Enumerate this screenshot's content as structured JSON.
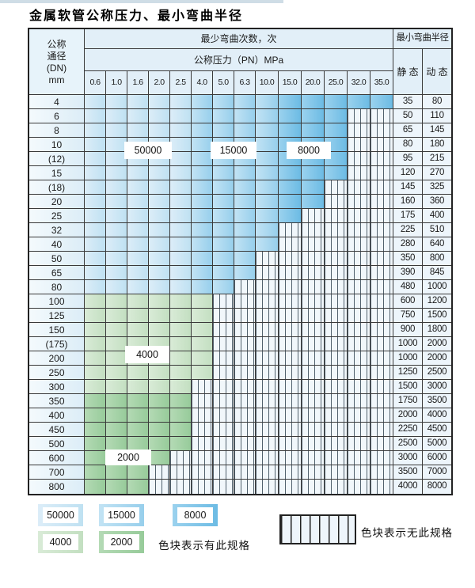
{
  "title": "金属软管公称压力、最小弯曲半径",
  "table": {
    "header": {
      "dn_lines": [
        "公称",
        "通径",
        "(DN)",
        "mm"
      ],
      "bend_times": "最少弯曲次数，次",
      "pressure": "公称压力（PN）MPa",
      "min_radius": "最小弯曲半径",
      "static_label": "静 态",
      "dynamic_label": "动 态",
      "pressures": [
        "0.6",
        "1.0",
        "1.6",
        "2.0",
        "2.5",
        "4.0",
        "5.0",
        "6.3",
        "10.0",
        "15.0",
        "20.0",
        "25.0",
        "32.0",
        "35.0"
      ]
    },
    "blue_zones": [
      {
        "value": "50000",
        "cols": [
          1,
          5
        ]
      },
      {
        "value": "15000",
        "cols": [
          6,
          9
        ]
      },
      {
        "value": "8000",
        "cols": [
          10,
          14
        ]
      }
    ],
    "rows": [
      {
        "dn": "4",
        "static": "35",
        "dynamic": "80",
        "max_col": 14,
        "zone": "blue"
      },
      {
        "dn": "6",
        "static": "50",
        "dynamic": "110",
        "max_col": 12,
        "zone": "blue"
      },
      {
        "dn": "8",
        "static": "65",
        "dynamic": "145",
        "max_col": 12,
        "zone": "blue"
      },
      {
        "dn": "10",
        "static": "80",
        "dynamic": "180",
        "max_col": 12,
        "zone": "blue"
      },
      {
        "dn": "(12)",
        "static": "95",
        "dynamic": "215",
        "max_col": 12,
        "zone": "blue"
      },
      {
        "dn": "15",
        "static": "120",
        "dynamic": "270",
        "max_col": 12,
        "zone": "blue"
      },
      {
        "dn": "(18)",
        "static": "145",
        "dynamic": "325",
        "max_col": 11,
        "zone": "blue"
      },
      {
        "dn": "20",
        "static": "160",
        "dynamic": "360",
        "max_col": 11,
        "zone": "blue"
      },
      {
        "dn": "25",
        "static": "175",
        "dynamic": "400",
        "max_col": 10,
        "zone": "blue"
      },
      {
        "dn": "32",
        "static": "225",
        "dynamic": "510",
        "max_col": 9,
        "zone": "blue"
      },
      {
        "dn": "40",
        "static": "280",
        "dynamic": "640",
        "max_col": 9,
        "zone": "blue"
      },
      {
        "dn": "50",
        "static": "350",
        "dynamic": "800",
        "max_col": 8,
        "zone": "blue"
      },
      {
        "dn": "65",
        "static": "390",
        "dynamic": "845",
        "max_col": 8,
        "zone": "blue"
      },
      {
        "dn": "80",
        "static": "480",
        "dynamic": "1000",
        "max_col": 7,
        "zone": "blue"
      },
      {
        "dn": "100",
        "static": "600",
        "dynamic": "1200",
        "max_col": 6,
        "zone": "4000"
      },
      {
        "dn": "125",
        "static": "750",
        "dynamic": "1500",
        "max_col": 6,
        "zone": "4000"
      },
      {
        "dn": "150",
        "static": "900",
        "dynamic": "1800",
        "max_col": 6,
        "zone": "4000"
      },
      {
        "dn": "(175)",
        "static": "1000",
        "dynamic": "2000",
        "max_col": 6,
        "zone": "4000"
      },
      {
        "dn": "200",
        "static": "1000",
        "dynamic": "2000",
        "max_col": 6,
        "zone": "4000"
      },
      {
        "dn": "250",
        "static": "1250",
        "dynamic": "2500",
        "max_col": 6,
        "zone": "4000"
      },
      {
        "dn": "300",
        "static": "1500",
        "dynamic": "3000",
        "max_col": 5,
        "zone": "4000"
      },
      {
        "dn": "350",
        "static": "1750",
        "dynamic": "3500",
        "max_col": 5,
        "zone": "2000"
      },
      {
        "dn": "400",
        "static": "2000",
        "dynamic": "4000",
        "max_col": 5,
        "zone": "2000"
      },
      {
        "dn": "450",
        "static": "2250",
        "dynamic": "4500",
        "max_col": 5,
        "zone": "2000"
      },
      {
        "dn": "500",
        "static": "2500",
        "dynamic": "5000",
        "max_col": 5,
        "zone": "2000"
      },
      {
        "dn": "600",
        "static": "3000",
        "dynamic": "6000",
        "max_col": 4,
        "zone": "2000"
      },
      {
        "dn": "700",
        "static": "3500",
        "dynamic": "7000",
        "max_col": 3,
        "zone": "2000"
      },
      {
        "dn": "800",
        "static": "4000",
        "dynamic": "8000",
        "max_col": 3,
        "zone": "2000"
      }
    ]
  },
  "overlays": {
    "v50000": "50000",
    "v15000": "15000",
    "v8000": "8000",
    "v4000": "4000",
    "v2000": "2000"
  },
  "legend": {
    "items": [
      {
        "value": "50000",
        "zone": "z50000"
      },
      {
        "value": "15000",
        "zone": "z15000"
      },
      {
        "value": "8000",
        "zone": "z8000"
      },
      {
        "value": "4000",
        "zone": "z4000"
      },
      {
        "value": "2000",
        "zone": "z2000"
      }
    ],
    "available_note": "色块表示有此规格",
    "unavailable_note": "色块表示无此规格"
  },
  "colors": {
    "zone_50000": "#c7e5f4",
    "zone_15000": "#a6d6ef",
    "zone_8000": "#7cc3e8",
    "zone_4000": "#cde6cb",
    "zone_2000": "#a2d1a4",
    "grid_line": "#3a3a3a"
  }
}
